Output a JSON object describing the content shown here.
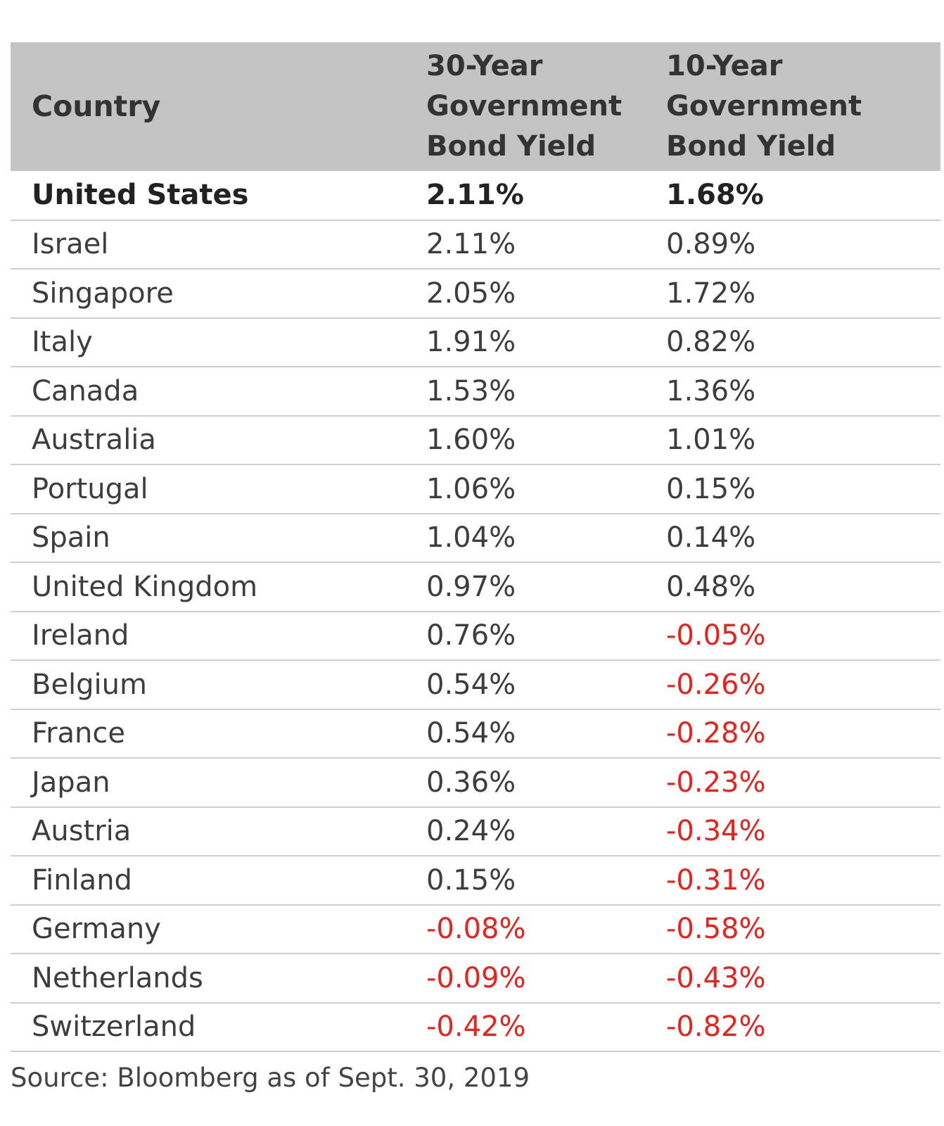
{
  "chart_data": {
    "type": "table",
    "columns": [
      "Country",
      [
        "30-Year",
        "Government",
        "Bond Yield"
      ],
      [
        "10-Year",
        "Government",
        "Bond Yield"
      ]
    ],
    "rows": [
      {
        "country": "United States",
        "y30": "2.11%",
        "y10": "1.68%",
        "highlight": true
      },
      {
        "country": "Israel",
        "y30": "2.11%",
        "y10": "0.89%"
      },
      {
        "country": "Singapore",
        "y30": "2.05%",
        "y10": "1.72%"
      },
      {
        "country": "Italy",
        "y30": "1.91%",
        "y10": "0.82%"
      },
      {
        "country": "Canada",
        "y30": "1.53%",
        "y10": "1.36%"
      },
      {
        "country": "Australia",
        "y30": "1.60%",
        "y10": "1.01%"
      },
      {
        "country": "Portugal",
        "y30": "1.06%",
        "y10": "0.15%"
      },
      {
        "country": "Spain",
        "y30": "1.04%",
        "y10": "0.14%"
      },
      {
        "country": "United Kingdom",
        "y30": "0.97%",
        "y10": "0.48%"
      },
      {
        "country": "Ireland",
        "y30": "0.76%",
        "y10": "-0.05%"
      },
      {
        "country": "Belgium",
        "y30": "0.54%",
        "y10": "-0.26%"
      },
      {
        "country": "France",
        "y30": "0.54%",
        "y10": "-0.28%"
      },
      {
        "country": "Japan",
        "y30": "0.36%",
        "y10": "-0.23%"
      },
      {
        "country": "Austria",
        "y30": "0.24%",
        "y10": "-0.34%"
      },
      {
        "country": "Finland",
        "y30": "0.15%",
        "y10": "-0.31%"
      },
      {
        "country": "Germany",
        "y30": "-0.08%",
        "y10": "-0.58%"
      },
      {
        "country": "Netherlands",
        "y30": "-0.09%",
        "y10": "-0.43%"
      },
      {
        "country": "Switzerland",
        "y30": "-0.42%",
        "y10": "-0.82%"
      }
    ],
    "source": "Source: Bloomberg as of Sept. 30, 2019"
  },
  "colors": {
    "header_bg": "#c4c4c4",
    "negative": "#e8221c",
    "row_divider": "#cfcfcf"
  }
}
